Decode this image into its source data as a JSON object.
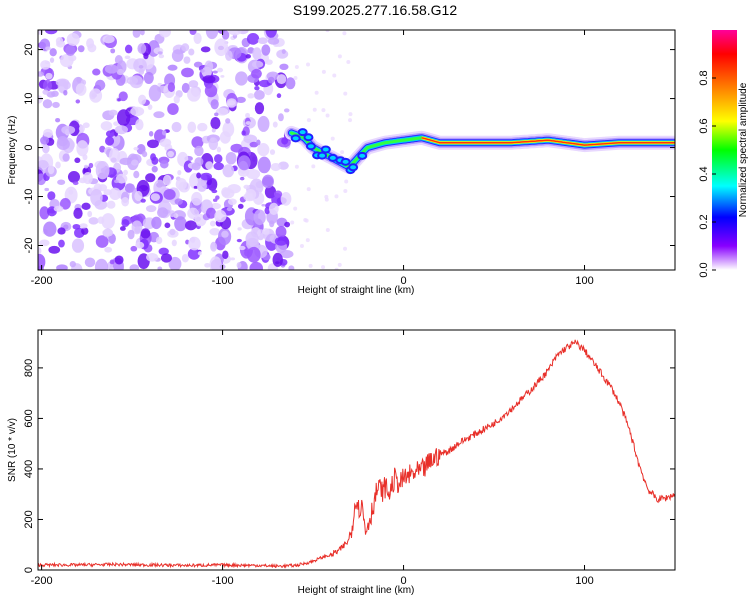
{
  "title": "S199.2025.277.16.58.G12",
  "chart_data": [
    {
      "type": "heatmap",
      "xlabel": "Height of straight line (km)",
      "ylabel": "Frequency (Hz)",
      "xlim": [
        -202,
        150
      ],
      "ylim": [
        -25,
        24
      ],
      "xticks": [
        -200,
        -100,
        0,
        100
      ],
      "yticks": [
        -20,
        -10,
        0,
        10,
        20
      ],
      "noise_region_x": [
        -202,
        -62
      ],
      "signal_line": {
        "x": [
          -62,
          -55,
          -50,
          -45,
          -40,
          -35,
          -30,
          -25,
          -20,
          -10,
          0,
          10,
          20,
          40,
          60,
          80,
          90,
          100,
          120,
          150
        ],
        "y": [
          3,
          2,
          0,
          -1,
          -2,
          -3,
          -4,
          -2,
          0,
          1,
          1.5,
          2,
          1,
          1,
          1,
          1.5,
          1,
          0.5,
          1,
          1
        ]
      },
      "colorbar": {
        "label": "Normalized spectral amplitude",
        "range": [
          0,
          1
        ],
        "ticks": [
          "0.0",
          "0.2",
          "0.4",
          "0.6",
          "0.8"
        ],
        "colors": [
          "#ff00aa",
          "#ff0000",
          "#ff8800",
          "#ffff00",
          "#00ff00",
          "#00ffff",
          "#0000ff",
          "#8800ff",
          "#ffffff"
        ]
      }
    },
    {
      "type": "line",
      "xlabel": "Height of straight line (km)",
      "ylabel": "SNR (10 * v/v)",
      "xlim": [
        -202,
        150
      ],
      "ylim": [
        0,
        950
      ],
      "xticks": [
        -200,
        -100,
        0,
        100
      ],
      "yticks": [
        0,
        200,
        400,
        600,
        800
      ],
      "color": "#e8302a",
      "x": [
        -202,
        -180,
        -160,
        -140,
        -120,
        -100,
        -80,
        -70,
        -60,
        -55,
        -50,
        -45,
        -40,
        -35,
        -30,
        -28,
        -26,
        -25,
        -23,
        -21,
        -20,
        -18,
        -16,
        -14,
        -12,
        -10,
        -8,
        -5,
        -2,
        0,
        5,
        10,
        15,
        20,
        25,
        30,
        40,
        50,
        60,
        70,
        80,
        85,
        90,
        95,
        100,
        105,
        110,
        115,
        120,
        125,
        130,
        135,
        140,
        145,
        150
      ],
      "y": [
        20,
        20,
        22,
        20,
        18,
        20,
        18,
        15,
        18,
        25,
        35,
        50,
        60,
        80,
        120,
        200,
        300,
        240,
        260,
        150,
        180,
        220,
        280,
        330,
        310,
        330,
        300,
        360,
        340,
        360,
        380,
        390,
        430,
        460,
        470,
        500,
        540,
        580,
        640,
        710,
        790,
        850,
        880,
        900,
        870,
        820,
        770,
        720,
        650,
        550,
        420,
        320,
        280,
        285,
        300
      ]
    }
  ]
}
